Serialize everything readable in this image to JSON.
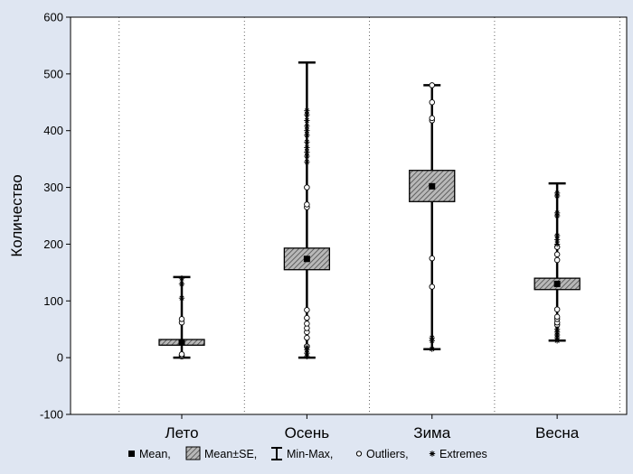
{
  "chart_data": {
    "type": "boxplot",
    "title": "",
    "xlabel": "",
    "ylabel": "Количество",
    "ylim": [
      -100,
      600
    ],
    "yticks": [
      -100,
      0,
      100,
      200,
      300,
      400,
      500,
      600
    ],
    "grid": "vertical",
    "categories": [
      "Лето",
      "Осень",
      "Зима",
      "Весна"
    ],
    "boxes": [
      {
        "category": "Лето",
        "mean": 27,
        "se_low": 22,
        "se_high": 32,
        "min": 0,
        "max": 142,
        "outliers": [
          2,
          4,
          6,
          62,
          68
        ],
        "extremes": [
          105,
          130,
          140
        ]
      },
      {
        "category": "Осень",
        "mean": 174,
        "se_low": 155,
        "se_high": 193,
        "min": 0,
        "max": 520,
        "outliers": [
          20,
          35,
          45,
          52,
          60,
          70,
          84,
          265,
          270,
          300
        ],
        "extremes": [
          2,
          8,
          14,
          18,
          345,
          355,
          362,
          370,
          380,
          392,
          400,
          408,
          418,
          428,
          435
        ]
      },
      {
        "category": "Зима",
        "mean": 302,
        "se_low": 275,
        "se_high": 330,
        "min": 15,
        "max": 480,
        "outliers": [
          125,
          175,
          418,
          422,
          450,
          480
        ],
        "extremes": [
          15,
          30,
          35
        ]
      },
      {
        "category": "Весна",
        "mean": 130,
        "se_low": 120,
        "se_high": 140,
        "min": 30,
        "max": 307,
        "outliers": [
          58,
          62,
          68,
          72,
          85,
          172,
          182,
          195
        ],
        "extremes": [
          30,
          35,
          40,
          45,
          50,
          200,
          208,
          215,
          250,
          255,
          285,
          290
        ]
      }
    ],
    "legend": {
      "placement": "bottom",
      "items": [
        {
          "icon": "mean-square-icon",
          "label": "Mean,"
        },
        {
          "icon": "se-box-icon",
          "label": "Mean±SE,"
        },
        {
          "icon": "min-max-whisker-icon",
          "label": "Min-Max,"
        },
        {
          "icon": "outlier-circle-icon",
          "label": "Outliers,"
        },
        {
          "icon": "extreme-star-icon",
          "label": "Extremes"
        }
      ]
    },
    "colors": {
      "background": "#dfe6f2",
      "plot_area": "#ffffff",
      "box_fill": "#a0a0a0",
      "line": "#000000"
    }
  }
}
